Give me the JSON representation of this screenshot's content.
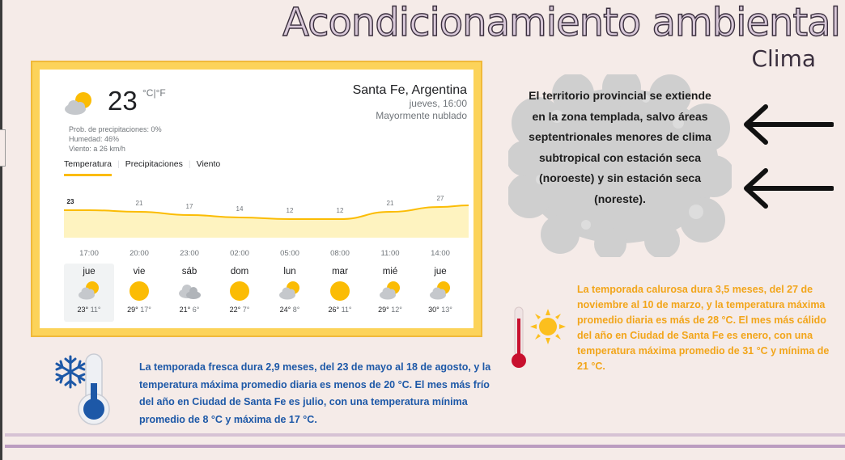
{
  "header": {
    "title": "Acondicionamiento ambiental",
    "subtitle": "Clima"
  },
  "weather": {
    "current": {
      "temp": "23",
      "units": "°C|°F",
      "icon": "partly-cloudy-icon",
      "details": [
        "Prob. de precipitaciones: 0%",
        "Humedad: 46%",
        "Viento: a 26 km/h"
      ]
    },
    "location": {
      "city": "Santa Fe, Argentina",
      "time": "jueves, 16:00",
      "condition": "Mayormente nublado"
    },
    "tabs": [
      "Temperatura",
      "Precipitaciones",
      "Viento"
    ],
    "hourly": {
      "hours": [
        "17:00",
        "20:00",
        "23:00",
        "02:00",
        "05:00",
        "08:00",
        "11:00",
        "14:00"
      ],
      "temps": [
        23,
        21,
        17,
        14,
        12,
        12,
        21,
        27
      ]
    },
    "daily": [
      {
        "day": "jue",
        "icon": "partly-cloudy-icon",
        "high": "23°",
        "low": "11°"
      },
      {
        "day": "vie",
        "icon": "sun-icon",
        "high": "29°",
        "low": "17°"
      },
      {
        "day": "sáb",
        "icon": "cloudy-icon",
        "high": "21°",
        "low": "6°"
      },
      {
        "day": "dom",
        "icon": "sun-icon",
        "high": "22°",
        "low": "7°"
      },
      {
        "day": "lun",
        "icon": "partly-cloudy-icon",
        "high": "24°",
        "low": "8°"
      },
      {
        "day": "mar",
        "icon": "sun-icon",
        "high": "26°",
        "low": "11°"
      },
      {
        "day": "mié",
        "icon": "partly-cloudy-icon",
        "high": "29°",
        "low": "12°"
      },
      {
        "day": "jue",
        "icon": "partly-cloudy-icon",
        "high": "30°",
        "low": "13°"
      }
    ],
    "colors": {
      "accent": "#fbbc04",
      "fill": "#fef3c0",
      "frame": "#fcd35a"
    }
  },
  "info": {
    "territory": "El territorio provincial se extiende en la zona templada, salvo áreas septentrionales menores de clima subtropical con estación seca (noroeste) y sin estación seca (noreste).",
    "hot_season": "La temporada calurosa dura 3,5 meses, del 27 de noviembre al 10 de marzo, y la temperatura máxima promedio diaria es más de 28 °C. El mes más cálido del año en Ciudad de Santa Fe es enero, con una temperatura máxima promedio de 31 °C y mínima de 21 °C.",
    "cold_season": "La temporada fresca dura 2,9 meses, del 23 de mayo al 18 de agosto, y la temperatura máxima promedio diaria es menos de 20 °C. El mes más frío del año en Ciudad de Santa Fe es julio, con una temperatura mínima promedio de 8 °C y máxima de 17 °C.",
    "colors": {
      "hot": "#f2a51a",
      "cold": "#1d58a7",
      "cloud": "#cfcfcf"
    }
  }
}
